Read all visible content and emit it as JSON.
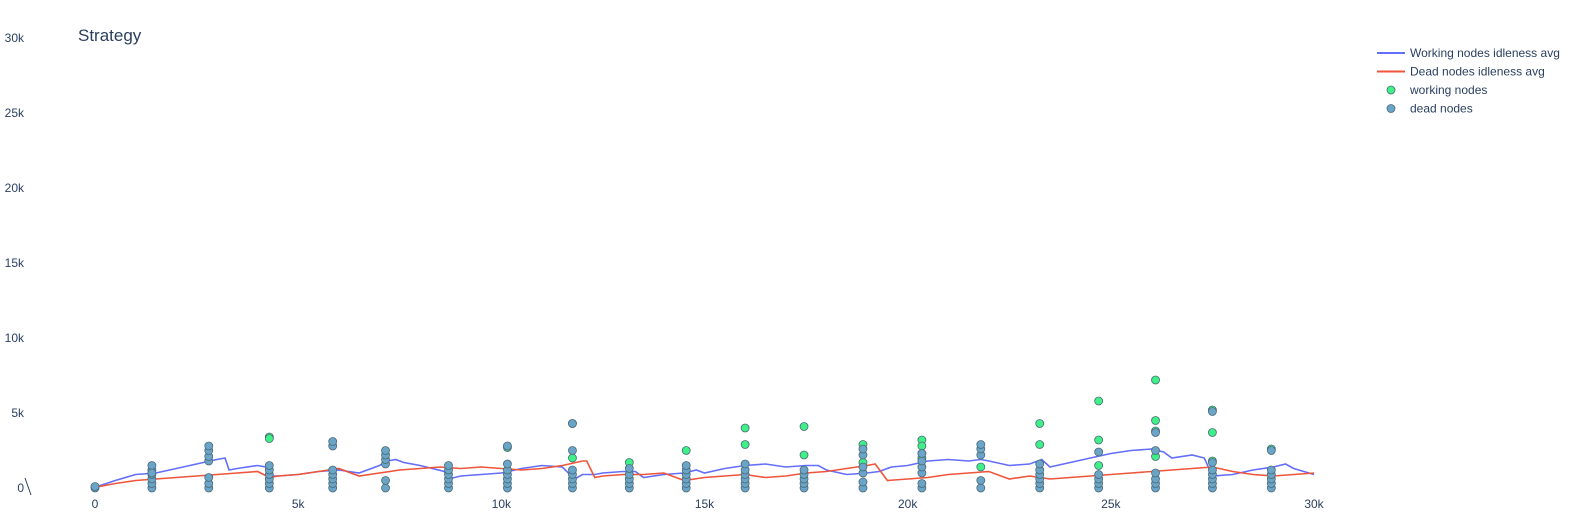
{
  "chart_data": {
    "type": "line",
    "title": "Strategy",
    "xlabel": "",
    "ylabel": "",
    "xlim": [
      0,
      30000
    ],
    "ylim": [
      0,
      30000
    ],
    "x_ticks": [
      0,
      5000,
      10000,
      15000,
      20000,
      25000,
      30000
    ],
    "x_tick_labels": [
      "0",
      "5k",
      "10k",
      "15k",
      "20k",
      "25k",
      "30k"
    ],
    "y_ticks": [
      0,
      5000,
      10000,
      15000,
      20000,
      25000,
      30000
    ],
    "y_tick_labels": [
      "0",
      "5k",
      "10k",
      "15k",
      "20k",
      "25k",
      "30k"
    ],
    "grid": false,
    "legend_position": "top-right",
    "colors": {
      "working_line": "#636efa",
      "dead_line": "#ef553b",
      "working_marker": "#3ff086",
      "dead_marker": "#6aa5c7",
      "marker_outline": "#4a6a7a"
    },
    "series": [
      {
        "name": "Working nodes idleness avg",
        "kind": "line",
        "x": [
          0,
          500,
          1000,
          1500,
          2000,
          2500,
          3000,
          3200,
          3300,
          3500,
          4000,
          4200,
          4300,
          4500,
          5000,
          5500,
          6000,
          6500,
          7000,
          7200,
          7400,
          7600,
          8000,
          8300,
          8600,
          8700,
          9000,
          9500,
          10000,
          10500,
          11000,
          11500,
          11800,
          12000,
          12300,
          12500,
          13000,
          13300,
          13500,
          14000,
          14500,
          14800,
          15000,
          15500,
          16000,
          16500,
          17000,
          17500,
          17800,
          18000,
          18500,
          19000,
          19300,
          19600,
          20000,
          20500,
          21000,
          21500,
          21800,
          22000,
          22500,
          23000,
          23300,
          23500,
          24000,
          24500,
          25000,
          25500,
          26000,
          26300,
          26500,
          27000,
          27300,
          27500,
          28000,
          28500,
          29000,
          29300,
          29500,
          30000
        ],
        "y": [
          50,
          500,
          900,
          1000,
          1300,
          1600,
          1900,
          2000,
          1200,
          1300,
          1500,
          1400,
          800,
          800,
          900,
          1100,
          1200,
          1000,
          1500,
          1800,
          1900,
          1700,
          1500,
          1300,
          1100,
          600,
          800,
          900,
          1000,
          1300,
          1500,
          1400,
          600,
          900,
          900,
          1000,
          1100,
          1100,
          700,
          900,
          1000,
          1200,
          1000,
          1300,
          1500,
          1600,
          1400,
          1500,
          1500,
          1200,
          900,
          1000,
          1100,
          1400,
          1500,
          1800,
          1900,
          1800,
          1900,
          1800,
          1500,
          1600,
          1900,
          1400,
          1700,
          2000,
          2300,
          2500,
          2600,
          2400,
          2000,
          2200,
          2000,
          800,
          900,
          1200,
          1400,
          1600,
          1300,
          900
        ]
      },
      {
        "name": "Dead nodes idleness avg",
        "kind": "line",
        "x": [
          0,
          500,
          1000,
          1500,
          2000,
          2500,
          3000,
          3500,
          4000,
          4300,
          4500,
          5000,
          5500,
          6000,
          6500,
          7000,
          7500,
          8000,
          8500,
          9000,
          9500,
          10000,
          10500,
          11000,
          11500,
          12000,
          12100,
          12300,
          12500,
          13000,
          13500,
          14000,
          14500,
          15000,
          15500,
          16000,
          16500,
          17000,
          17500,
          18000,
          18500,
          19000,
          19200,
          19500,
          20000,
          20500,
          21000,
          21500,
          22000,
          22500,
          23000,
          23500,
          24000,
          24500,
          25000,
          25500,
          26000,
          26500,
          27000,
          27500,
          28000,
          28500,
          29000,
          29500,
          30000
        ],
        "y": [
          50,
          300,
          500,
          600,
          700,
          800,
          900,
          1000,
          1100,
          700,
          800,
          900,
          1100,
          1300,
          800,
          1000,
          1200,
          1300,
          1400,
          1300,
          1400,
          1300,
          1200,
          1300,
          1500,
          1800,
          1800,
          700,
          800,
          900,
          900,
          1000,
          500,
          700,
          800,
          900,
          700,
          800,
          1000,
          1100,
          1300,
          1500,
          1600,
          500,
          600,
          700,
          900,
          1000,
          1100,
          600,
          800,
          600,
          700,
          800,
          900,
          1000,
          1100,
          1200,
          1300,
          1400,
          1100,
          900,
          800,
          900,
          1000
        ]
      },
      {
        "name": "working nodes",
        "kind": "scatter",
        "x": [
          4290,
          4290,
          10150,
          11750,
          11750,
          13150,
          14550,
          16000,
          16000,
          17450,
          17450,
          18900,
          18900,
          20350,
          20350,
          20350,
          20350,
          21800,
          23250,
          23250,
          24700,
          24700,
          24700,
          26100,
          26100,
          26100,
          26100,
          27500,
          27500,
          27500,
          28950
        ],
        "y": [
          3400,
          3300,
          2700,
          2000,
          4300,
          1700,
          2500,
          4000,
          2900,
          4100,
          2200,
          2900,
          1700,
          3200,
          2800,
          2300,
          2000,
          1400,
          4300,
          2900,
          5800,
          3200,
          1500,
          7200,
          4500,
          3800,
          2100,
          5200,
          3700,
          1800,
          2600
        ]
      },
      {
        "name": "dead nodes",
        "kind": "scatter",
        "x": [
          0,
          0,
          1400,
          1400,
          1400,
          1400,
          1400,
          1400,
          1400,
          2800,
          2800,
          2800,
          2800,
          2800,
          2800,
          2800,
          4290,
          4290,
          4290,
          4290,
          4290,
          4290,
          5850,
          5850,
          5850,
          5850,
          5850,
          5850,
          5850,
          7150,
          7150,
          7150,
          7150,
          7150,
          7150,
          8700,
          8700,
          8700,
          8700,
          8700,
          8700,
          10150,
          10150,
          10150,
          10150,
          10150,
          10150,
          10150,
          11750,
          11750,
          11750,
          11750,
          11750,
          11750,
          11750,
          13150,
          13150,
          13150,
          13150,
          13150,
          14550,
          14550,
          14550,
          14550,
          14550,
          14550,
          16000,
          16000,
          16000,
          16000,
          16000,
          16000,
          17450,
          17450,
          17450,
          17450,
          17450,
          18900,
          18900,
          18900,
          18900,
          18900,
          18900,
          20350,
          20350,
          20350,
          20350,
          20350,
          20350,
          21800,
          21800,
          21800,
          21800,
          21800,
          23250,
          23250,
          23250,
          23250,
          23250,
          23250,
          24700,
          24700,
          24700,
          24700,
          24700,
          26100,
          26100,
          26100,
          26100,
          26100,
          26100,
          27500,
          27500,
          27500,
          27500,
          27500,
          27500,
          27500,
          28950,
          28950,
          28950,
          28950,
          28950,
          28950
        ],
        "y": [
          0,
          100,
          0,
          300,
          600,
          900,
          1200,
          1500,
          1000,
          0,
          300,
          700,
          1800,
          2100,
          2500,
          2800,
          0,
          300,
          600,
          900,
          1200,
          1500,
          0,
          300,
          600,
          900,
          1200,
          2800,
          3100,
          0,
          500,
          1600,
          1900,
          2200,
          2500,
          0,
          300,
          600,
          900,
          1200,
          1500,
          0,
          300,
          600,
          900,
          1200,
          1600,
          2800,
          0,
          300,
          600,
          900,
          1200,
          2500,
          4300,
          0,
          300,
          600,
          900,
          1300,
          0,
          300,
          600,
          900,
          1200,
          1500,
          0,
          300,
          600,
          900,
          1200,
          1600,
          0,
          300,
          600,
          900,
          1200,
          0,
          400,
          1000,
          1400,
          2200,
          2600,
          0,
          300,
          1000,
          1400,
          1800,
          2300,
          0,
          500,
          2200,
          2600,
          2900,
          0,
          300,
          600,
          900,
          1200,
          1600,
          0,
          300,
          600,
          900,
          2400,
          0,
          300,
          600,
          1000,
          2500,
          3700,
          0,
          300,
          600,
          900,
          1200,
          1700,
          5100,
          0,
          300,
          600,
          900,
          1200,
          2500
        ]
      }
    ]
  }
}
